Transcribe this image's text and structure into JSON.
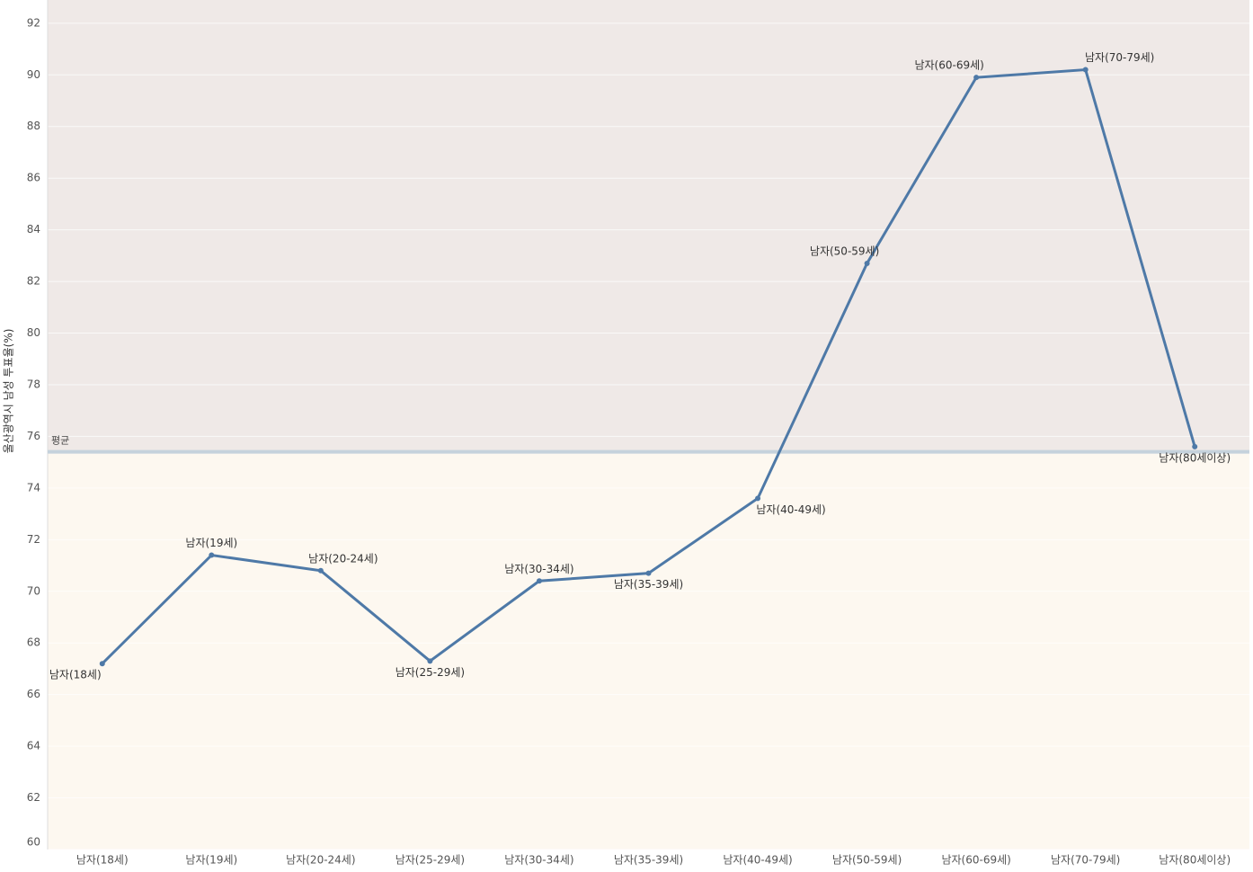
{
  "chart_data": {
    "type": "line",
    "y_label": "울산광역시 남성 투표율(%)",
    "categories": [
      "남자(18세)",
      "남자(19세)",
      "남자(20-24세)",
      "남자(25-29세)",
      "남자(30-34세)",
      "남자(35-39세)",
      "남자(40-49세)",
      "남자(50-59세)",
      "남자(60-69세)",
      "남자(70-79세)",
      "남자(80세이상)"
    ],
    "series": [
      {
        "name": "울산광역시 남성 투표율(%)",
        "color": "#4e79a7",
        "values": [
          67.2,
          71.4,
          70.8,
          67.3,
          70.4,
          70.7,
          73.6,
          82.7,
          89.9,
          90.2,
          75.6
        ]
      }
    ],
    "reference_line": {
      "label": "평균",
      "value": 75.4
    },
    "ylim": [
      60,
      92.9
    ],
    "yticks": [
      60,
      62,
      64,
      66,
      68,
      70,
      72,
      74,
      76,
      78,
      80,
      82,
      84,
      86,
      88,
      90,
      92
    ],
    "grid": true
  }
}
